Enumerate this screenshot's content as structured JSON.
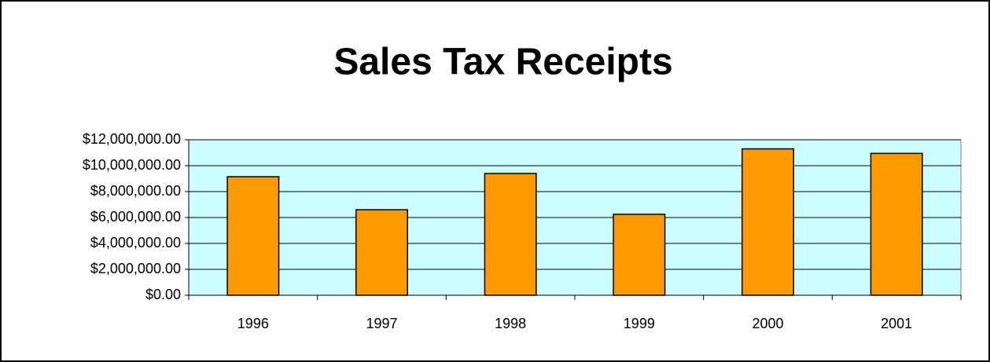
{
  "chart_data": {
    "type": "bar",
    "title": "Sales Tax Receipts",
    "categories": [
      "1996",
      "1997",
      "1998",
      "1999",
      "2000",
      "2001"
    ],
    "values": [
      9150000,
      6600000,
      9400000,
      6250000,
      11300000,
      10950000
    ],
    "color": "#ff9900",
    "ylim": [
      0,
      12000000
    ],
    "yticks": [
      {
        "value": 0,
        "label": "$0.00"
      },
      {
        "value": 2000000,
        "label": "$2,000,000.00"
      },
      {
        "value": 4000000,
        "label": "$4,000,000.00"
      },
      {
        "value": 6000000,
        "label": "$6,000,000.00"
      },
      {
        "value": 8000000,
        "label": "$8,000,000.00"
      },
      {
        "value": 10000000,
        "label": "$10,000,000.00"
      },
      {
        "value": 12000000,
        "label": "$12,000,000.00"
      }
    ],
    "grid": true
  }
}
